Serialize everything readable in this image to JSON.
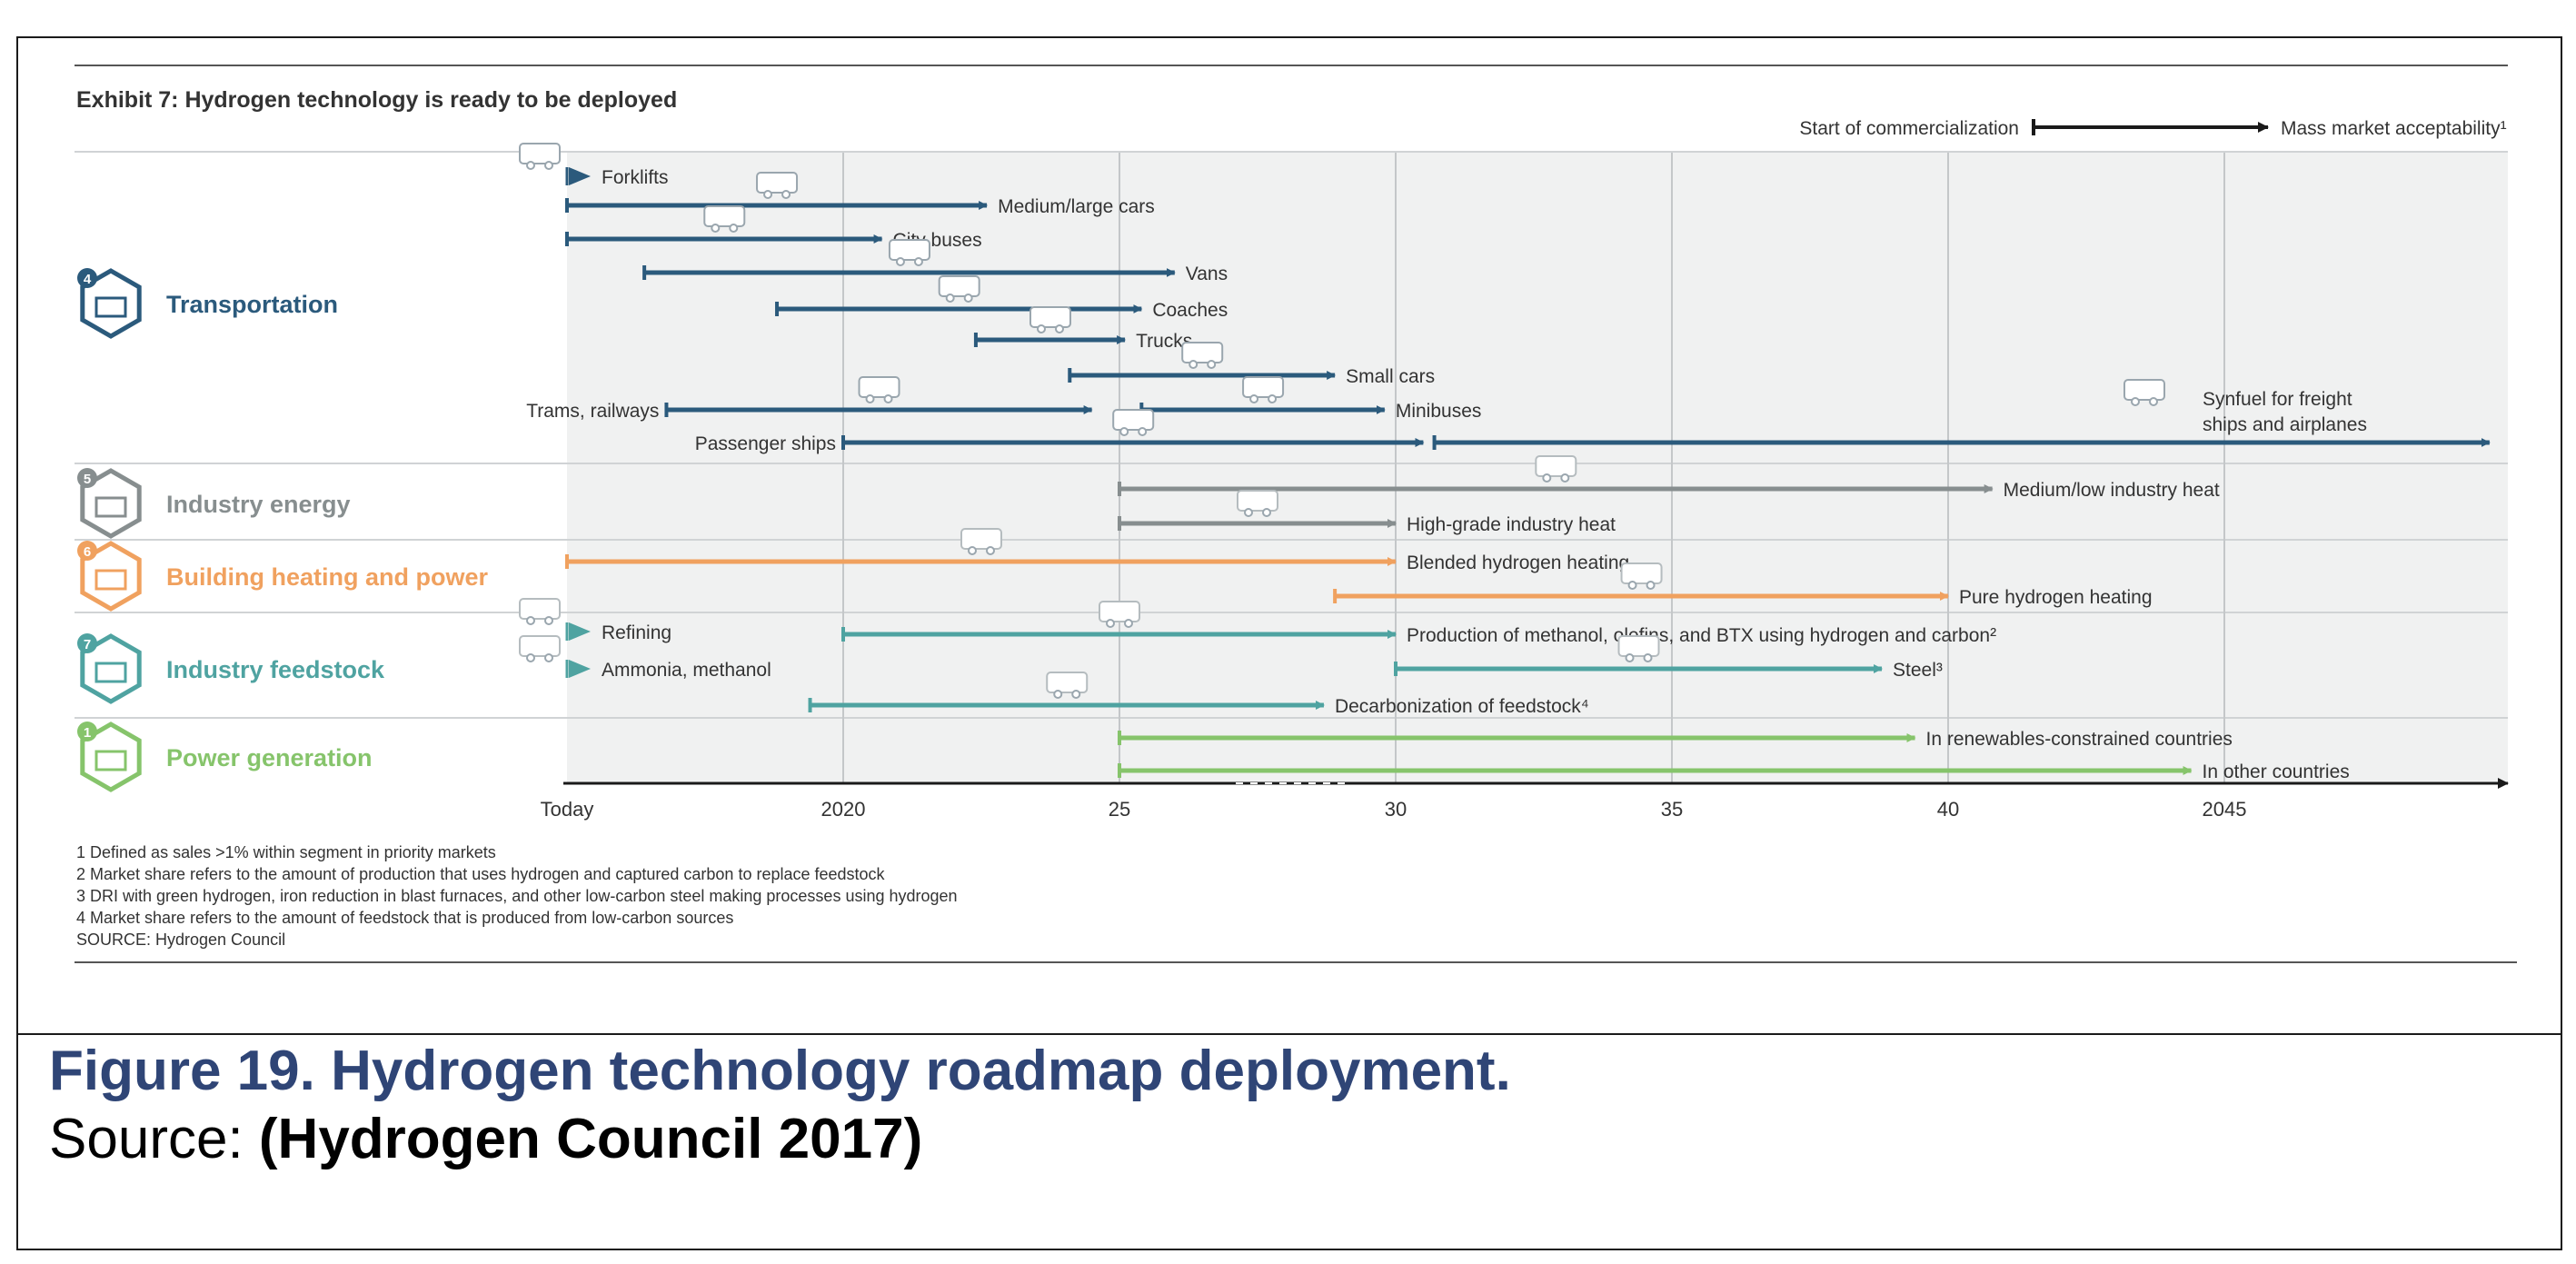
{
  "caption": {
    "title": "Figure 19. Hydrogen technology roadmap deployment.",
    "source_prefix": "Source: ",
    "source_ref": "(Hydrogen Council 2017)"
  },
  "chart_data": {
    "type": "timeline",
    "title": "Exhibit 7: Hydrogen technology is ready to be deployed",
    "legend": {
      "start_label": "Start of commercialization",
      "end_label": "Mass market acceptability¹",
      "placement": "top-right"
    },
    "x_axis": {
      "ticks": [
        {
          "value": 2015,
          "label": "Today"
        },
        {
          "value": 2020,
          "label": "2020"
        },
        {
          "value": 2025,
          "label": "25"
        },
        {
          "value": 2030,
          "label": "30"
        },
        {
          "value": 2035,
          "label": "35"
        },
        {
          "value": 2040,
          "label": "40"
        },
        {
          "value": 2045,
          "label": "2045"
        }
      ],
      "range": [
        2015,
        2050
      ]
    },
    "colors": {
      "transportation": "#2b5a7c",
      "industry_energy": "#878e8f",
      "building": "#f0a15f",
      "feedstock": "#4fa3a1",
      "power": "#86c46b",
      "band": "#f0f1f1",
      "gridline": "#c4c7c9",
      "text": "#333333"
    },
    "segments": [
      {
        "id": "transportation",
        "badge": "4",
        "label": "Transportation",
        "color": "#2b5a7c",
        "icon": "train-station-icon"
      },
      {
        "id": "industry_energy",
        "badge": "5",
        "label": "Industry energy",
        "color": "#878e8f",
        "icon": "factory-icon"
      },
      {
        "id": "building",
        "badge": "6",
        "label": "Building heating and power",
        "color": "#f0a15f",
        "icon": "house-icon"
      },
      {
        "id": "feedstock",
        "badge": "7",
        "label": "Industry feedstock",
        "color": "#4fa3a1",
        "icon": "plant-icon"
      },
      {
        "id": "power",
        "badge": "1",
        "label": "Power generation",
        "color": "#86c46b",
        "icon": "wind-turbine-icon"
      }
    ],
    "applications": [
      {
        "segment": "transportation",
        "label": "Forklifts",
        "start": 2015,
        "end": 2015.5,
        "label_side": "right",
        "icon": "forklift-icon"
      },
      {
        "segment": "transportation",
        "label": "Medium/large cars",
        "start": 2015,
        "end": 2022.6,
        "label_side": "right",
        "icon": "car-icon"
      },
      {
        "segment": "transportation",
        "label": "City buses",
        "start": 2015,
        "end": 2020.7,
        "label_side": "right",
        "icon": "bus-icon"
      },
      {
        "segment": "transportation",
        "label": "Vans",
        "start": 2016.4,
        "end": 2026,
        "label_side": "right",
        "icon": "van-icon"
      },
      {
        "segment": "transportation",
        "label": "Coaches",
        "start": 2018.8,
        "end": 2025.4,
        "label_side": "right",
        "icon": "coach-icon"
      },
      {
        "segment": "transportation",
        "label": "Trucks",
        "start": 2022.4,
        "end": 2025.1,
        "label_side": "right",
        "icon": "truck-icon"
      },
      {
        "segment": "transportation",
        "label": "Small cars",
        "start": 2024.1,
        "end": 2028.9,
        "label_side": "right",
        "icon": "small-car-icon"
      },
      {
        "segment": "transportation",
        "label": "Trams, railways",
        "start": 2016.8,
        "end": 2024.5,
        "label_side": "left",
        "icon": "train-icon"
      },
      {
        "segment": "transportation",
        "label": "Minibuses",
        "start": 2025.4,
        "end": 2029.8,
        "label_side": "right",
        "icon": "ship-icon"
      },
      {
        "segment": "transportation",
        "label": "Passenger ships",
        "start": 2020,
        "end": 2030.5,
        "label_side": "left",
        "icon": "silo-icon"
      },
      {
        "segment": "transportation",
        "label": "Synfuel for freight ships and airplanes",
        "start": 2030.7,
        "end": 2049.8,
        "label_side": "above",
        "icon": "airplane-ship-icon"
      },
      {
        "segment": "industry_energy",
        "label": "Medium/low industry heat",
        "start": 2025,
        "end": 2040.8,
        "label_side": "right",
        "icon": "factory-icon"
      },
      {
        "segment": "industry_energy",
        "label": "High-grade industry heat",
        "start": 2025,
        "end": 2030,
        "label_side": "right",
        "icon": "factory-icon"
      },
      {
        "segment": "building",
        "label": "Blended hydrogen heating",
        "start": 2015,
        "end": 2030,
        "label_side": "right",
        "icon": "pipe-icon"
      },
      {
        "segment": "building",
        "label": "Pure hydrogen heating",
        "start": 2028.9,
        "end": 2040,
        "label_side": "right",
        "icon": "flame-icon"
      },
      {
        "segment": "feedstock",
        "label": "Refining",
        "start": 2015,
        "end": 2015.5,
        "label_side": "right",
        "icon": "refinery-icon"
      },
      {
        "segment": "feedstock",
        "label": "Ammonia, methanol",
        "start": 2015,
        "end": 2015.5,
        "label_side": "right",
        "icon": "flask-icon"
      },
      {
        "segment": "feedstock",
        "label": "Production of methanol, olefins, and BTX using hydrogen and carbon²",
        "start": 2020,
        "end": 2030,
        "label_side": "right",
        "icon": "molecule-icon"
      },
      {
        "segment": "feedstock",
        "label": "Steel³",
        "start": 2030,
        "end": 2038.8,
        "label_side": "right",
        "icon": "steel-icon"
      },
      {
        "segment": "feedstock",
        "label": "Decarbonization of feedstock⁴",
        "start": 2019.4,
        "end": 2028.7,
        "label_side": "right",
        "icon": "chemicals-icon"
      },
      {
        "segment": "power",
        "label": "In renewables-constrained countries",
        "start": 2025,
        "end": 2039.4,
        "label_side": "right"
      },
      {
        "segment": "power",
        "label": "In other countries",
        "start": 2025,
        "end": 2044.4,
        "label_side": "right"
      }
    ],
    "footnotes": [
      "1 Defined as sales >1% within segment in priority markets",
      "2 Market share refers to the amount of production that uses hydrogen and captured carbon to replace feedstock",
      "3 DRI with green hydrogen, iron reduction in blast furnaces, and other low-carbon steel making processes using hydrogen",
      "4 Market share refers to the amount of feedstock that is produced from low-carbon sources",
      "SOURCE: Hydrogen Council"
    ]
  }
}
